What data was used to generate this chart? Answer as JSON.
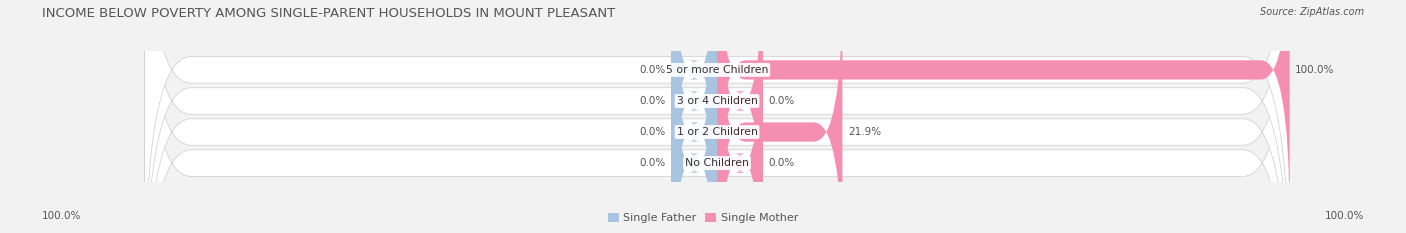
{
  "title": "INCOME BELOW POVERTY AMONG SINGLE-PARENT HOUSEHOLDS IN MOUNT PLEASANT",
  "source": "Source: ZipAtlas.com",
  "categories": [
    "No Children",
    "1 or 2 Children",
    "3 or 4 Children",
    "5 or more Children"
  ],
  "single_father_values": [
    0.0,
    0.0,
    0.0,
    0.0
  ],
  "single_mother_values": [
    0.0,
    21.9,
    0.0,
    100.0
  ],
  "single_father_color": "#a8c4e0",
  "single_mother_color": "#f48fb1",
  "background_color": "#f2f2f2",
  "bar_bg_color": "#e2e2e2",
  "row_bg_light": "#f7f7f7",
  "row_bg_dark": "#eeeeee",
  "title_fontsize": 9.5,
  "label_fontsize": 7.5,
  "category_fontsize": 7.8,
  "legend_fontsize": 8,
  "source_fontsize": 7,
  "axis_label_left": "100.0%",
  "axis_label_right": "100.0%",
  "max_value": 100.0,
  "title_color": "#555555",
  "text_color": "#555555",
  "value_label_color": "#555555"
}
